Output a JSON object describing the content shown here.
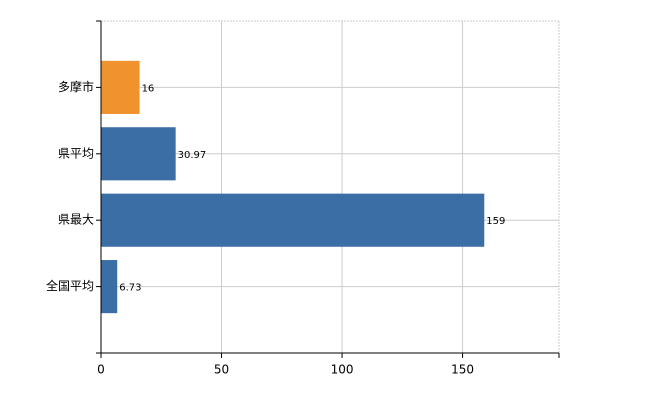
{
  "chart_data": {
    "type": "barh",
    "categories": [
      "多摩市",
      "県平均",
      "県最大",
      "全国平均"
    ],
    "values": [
      16,
      30.97,
      159,
      6.73
    ],
    "colors": [
      "#f0922e",
      "#3a6ea5",
      "#3a6ea5",
      "#3a6ea5"
    ],
    "xlim": [
      0,
      190
    ],
    "xticks": [
      0,
      50,
      100,
      150
    ],
    "grid": true
  }
}
